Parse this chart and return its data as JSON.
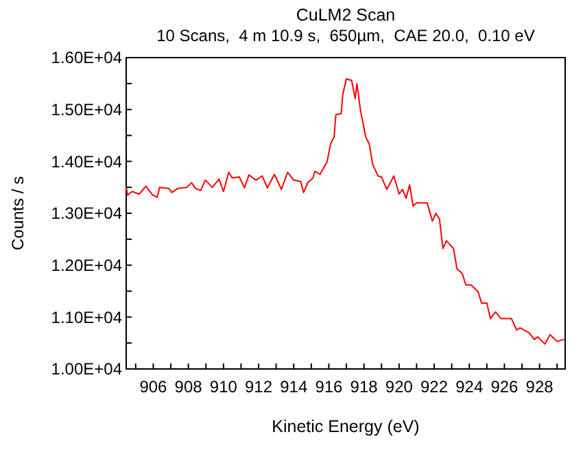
{
  "chart_data": {
    "type": "line",
    "title": "CuLM2 Scan",
    "subtitle": "10 Scans,  4 m 10.9 s,  650µm,  CAE 20.0,  0.10 eV",
    "xlabel": "Kinetic Energy (eV)",
    "ylabel": "Counts / s",
    "x": [
      904.46,
      904.54,
      904.8,
      905.2,
      905.58,
      905.97,
      906.23,
      906.36,
      906.88,
      907.06,
      907.4,
      907.92,
      908.18,
      908.4,
      908.7,
      908.97,
      909.36,
      909.75,
      910.0,
      910.3,
      910.5,
      910.9,
      911.2,
      911.45,
      911.85,
      912.2,
      912.5,
      912.9,
      913.3,
      913.65,
      914.0,
      914.4,
      914.56,
      914.8,
      915.1,
      915.2,
      915.5,
      915.9,
      916.1,
      916.3,
      916.4,
      916.7,
      916.8,
      917.0,
      917.3,
      917.5,
      917.6,
      917.8,
      918.1,
      918.3,
      918.5,
      918.8,
      919.0,
      919.3,
      919.7,
      920.0,
      920.2,
      920.4,
      920.6,
      920.8,
      921.0,
      921.6,
      921.9,
      922.1,
      922.3,
      922.5,
      922.7,
      923.1,
      923.3,
      923.6,
      923.8,
      924.1,
      924.5,
      924.7,
      925.0,
      925.2,
      925.5,
      925.8,
      926.4,
      926.7,
      926.9,
      927.4,
      927.7,
      927.9,
      928.3,
      928.6,
      929.0,
      929.4
    ],
    "series": [
      {
        "color": "#ff0000",
        "values": [
          13500,
          13350,
          13420,
          13370,
          13520,
          13350,
          13310,
          13500,
          13480,
          13400,
          13480,
          13500,
          13590,
          13480,
          13440,
          13640,
          13500,
          13660,
          13420,
          13790,
          13680,
          13700,
          13490,
          13740,
          13640,
          13720,
          13490,
          13750,
          13460,
          13790,
          13640,
          13610,
          13400,
          13590,
          13680,
          13810,
          13750,
          13990,
          14340,
          14470,
          14900,
          14920,
          15300,
          15590,
          15560,
          15210,
          15500,
          14990,
          14470,
          14340,
          13940,
          13720,
          13700,
          13460,
          13720,
          13370,
          13460,
          13290,
          13550,
          13140,
          13200,
          13200,
          12850,
          13000,
          12890,
          12320,
          12470,
          12320,
          11930,
          11840,
          11620,
          11620,
          11490,
          11270,
          11270,
          10970,
          11100,
          10970,
          10970,
          10750,
          10790,
          10700,
          10570,
          10620,
          10480,
          10660,
          10530,
          10570
        ]
      }
    ],
    "xlim": [
      904.46,
      929.46
    ],
    "ylim": [
      10000,
      16000
    ],
    "xticks": [
      {
        "value": 905,
        "label": null
      },
      906,
      {
        "value": 907,
        "label": null
      },
      908,
      {
        "value": 909,
        "label": null
      },
      910,
      {
        "value": 911,
        "label": null
      },
      912,
      {
        "value": 913,
        "label": null
      },
      914,
      {
        "value": 915,
        "label": null
      },
      916,
      {
        "value": 917,
        "label": null
      },
      918,
      {
        "value": 919,
        "label": null
      },
      920,
      {
        "value": 921,
        "label": null
      },
      922,
      {
        "value": 923,
        "label": null
      },
      924,
      {
        "value": 925,
        "label": null
      },
      926,
      {
        "value": 927,
        "label": null
      },
      928,
      {
        "value": 929,
        "label": null
      }
    ],
    "yticks": [
      {
        "value": 10000,
        "label": "1.00E+04"
      },
      {
        "value": 10500,
        "label": null
      },
      {
        "value": 11000,
        "label": "1.10E+04"
      },
      {
        "value": 11500,
        "label": null
      },
      {
        "value": 12000,
        "label": "1.20E+04"
      },
      {
        "value": 12500,
        "label": null
      },
      {
        "value": 13000,
        "label": "1.30E+04"
      },
      {
        "value": 13500,
        "label": null
      },
      {
        "value": 14000,
        "label": "1.40E+04"
      },
      {
        "value": 14500,
        "label": null
      },
      {
        "value": 15000,
        "label": "1.50E+04"
      },
      {
        "value": 15500,
        "label": null
      },
      {
        "value": 16000,
        "label": "1.60E+04"
      }
    ],
    "grid": false,
    "marker": "none",
    "line_style": "solid"
  }
}
